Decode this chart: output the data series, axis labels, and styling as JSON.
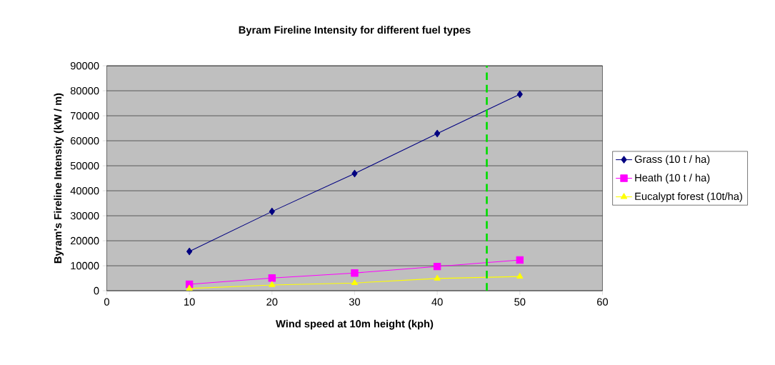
{
  "chart_data": {
    "type": "line",
    "title": "Byram Fireline Intensity for different fuel types",
    "xlabel": "Wind speed at 10m height (kph)",
    "ylabel": "Byram's Fireline Intensity (kW / m)",
    "x": [
      10,
      20,
      30,
      40,
      50
    ],
    "series": [
      {
        "name": "Grass (10 t / ha)",
        "color": "#000080",
        "marker": "diamond",
        "values": [
          15700,
          31700,
          46900,
          62900,
          78600
        ]
      },
      {
        "name": "Heath (10 t / ha)",
        "color": "#ff00ff",
        "marker": "square",
        "values": [
          2600,
          5100,
          7100,
          9700,
          12300
        ]
      },
      {
        "name": "Eucalypt forest (10t/ha)",
        "color": "#ffff00",
        "marker": "triangle",
        "values": [
          900,
          2300,
          3100,
          4900,
          5700
        ]
      }
    ],
    "xlim": [
      0,
      60
    ],
    "xticks": [
      0,
      10,
      20,
      30,
      40,
      50,
      60
    ],
    "ylim": [
      0,
      90000
    ],
    "yticks": [
      0,
      10000,
      20000,
      30000,
      40000,
      50000,
      60000,
      70000,
      80000,
      90000
    ],
    "ref_lines": [
      {
        "axis": "x",
        "value": 46,
        "color": "#00dd00",
        "line_style": "dashed"
      }
    ],
    "grid": "y",
    "legend": "right"
  }
}
